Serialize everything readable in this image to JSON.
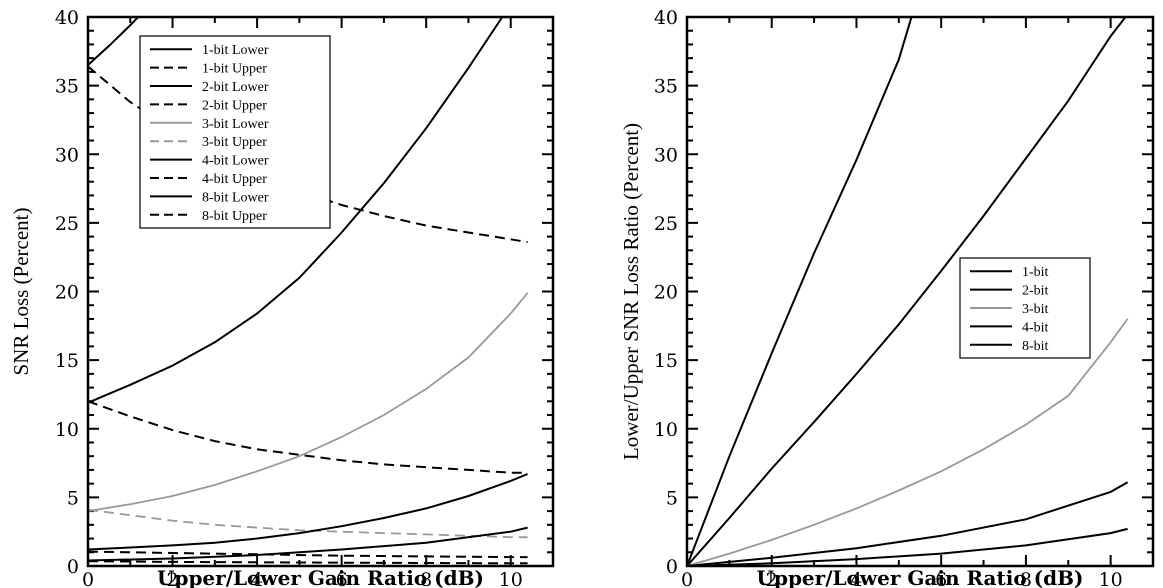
{
  "chart_data": [
    {
      "type": "line",
      "title": "",
      "xlabel": "Upper/Lower Gain Ratio (dB)",
      "ylabel": "SNR Loss (Percent)",
      "xlim": [
        0,
        11
      ],
      "ylim": [
        0,
        40
      ],
      "x_ticks": [
        0,
        2,
        4,
        6,
        8,
        10
      ],
      "y_ticks": [
        0,
        5,
        10,
        15,
        20,
        25,
        30,
        35,
        40
      ],
      "legend_position": "top-left",
      "series": [
        {
          "name": "1-bit Lower",
          "style": "solid",
          "color": "#000000",
          "x": [
            0,
            0.5,
            1,
            1.5,
            2
          ],
          "y": [
            36.5,
            37.9,
            39.4,
            41,
            42.6
          ]
        },
        {
          "name": "1-bit Upper",
          "style": "dashed",
          "color": "#000000",
          "x": [
            0,
            1,
            2,
            3,
            4,
            5,
            6,
            7,
            8,
            9,
            10,
            10.4
          ],
          "y": [
            36.4,
            33.8,
            31.8,
            30.1,
            28.6,
            27.3,
            26.3,
            25.5,
            24.8,
            24.3,
            23.8,
            23.6
          ]
        },
        {
          "name": "2-bit Lower",
          "style": "solid",
          "color": "#000000",
          "x": [
            0,
            1,
            2,
            3,
            4,
            5,
            6,
            7,
            8,
            9,
            9.8
          ],
          "y": [
            11.9,
            13.2,
            14.6,
            16.3,
            18.4,
            21.0,
            24.3,
            27.9,
            31.9,
            36.3,
            40.0
          ]
        },
        {
          "name": "2-bit Upper",
          "style": "dashed",
          "color": "#000000",
          "x": [
            0,
            1,
            2,
            3,
            4,
            5,
            6,
            7,
            8,
            9,
            10,
            10.4
          ],
          "y": [
            12.0,
            10.9,
            9.9,
            9.1,
            8.5,
            8.1,
            7.7,
            7.4,
            7.2,
            7.0,
            6.8,
            6.8
          ]
        },
        {
          "name": "3-bit Lower",
          "style": "solid",
          "color": "#999999",
          "x": [
            0,
            1,
            2,
            3,
            4,
            5,
            6,
            7,
            8,
            9,
            10,
            10.4
          ],
          "y": [
            4.0,
            4.5,
            5.1,
            5.9,
            6.9,
            8.0,
            9.4,
            11.0,
            12.9,
            15.2,
            18.4,
            19.9
          ]
        },
        {
          "name": "3-bit Upper",
          "style": "dashed",
          "color": "#999999",
          "x": [
            0,
            1,
            2,
            3,
            4,
            5,
            6,
            7,
            8,
            9,
            10,
            10.4
          ],
          "y": [
            4.1,
            3.7,
            3.3,
            3.0,
            2.8,
            2.6,
            2.5,
            2.4,
            2.3,
            2.2,
            2.1,
            2.1
          ]
        },
        {
          "name": "4-bit Lower",
          "style": "solid",
          "color": "#000000",
          "x": [
            0,
            1,
            2,
            3,
            4,
            5,
            6,
            7,
            8,
            9,
            10,
            10.4
          ],
          "y": [
            1.2,
            1.35,
            1.5,
            1.7,
            2.0,
            2.4,
            2.9,
            3.5,
            4.2,
            5.1,
            6.2,
            6.7
          ]
        },
        {
          "name": "4-bit Upper",
          "style": "dashed",
          "color": "#000000",
          "x": [
            0,
            2,
            4,
            6,
            8,
            10,
            10.4
          ],
          "y": [
            1.05,
            0.95,
            0.85,
            0.75,
            0.7,
            0.65,
            0.65
          ]
        },
        {
          "name": "8-bit Lower",
          "style": "solid",
          "color": "#000000",
          "x": [
            0,
            2,
            4,
            6,
            8,
            10,
            10.4
          ],
          "y": [
            0.4,
            0.55,
            0.8,
            1.2,
            1.7,
            2.5,
            2.8
          ]
        },
        {
          "name": "8-bit Upper",
          "style": "dashed",
          "color": "#000000",
          "x": [
            0,
            2,
            4,
            6,
            8,
            10,
            10.4
          ],
          "y": [
            0.35,
            0.3,
            0.27,
            0.24,
            0.22,
            0.2,
            0.2
          ]
        }
      ]
    },
    {
      "type": "line",
      "title": "",
      "xlabel": "Upper/Lower Gain Ratio (dB)",
      "ylabel": "Lower/Upper SNR Loss Ratio (Percent)",
      "xlim": [
        0,
        11
      ],
      "ylim": [
        0,
        40
      ],
      "x_ticks": [
        0,
        2,
        4,
        6,
        8,
        10
      ],
      "y_ticks": [
        0,
        5,
        10,
        15,
        20,
        25,
        30,
        35,
        40
      ],
      "legend_position": "center-right",
      "series": [
        {
          "name": "1-bit",
          "style": "solid",
          "color": "#000000",
          "x": [
            0,
            1,
            2,
            3,
            4,
            5,
            5.3
          ],
          "y": [
            0,
            8.0,
            15.5,
            22.8,
            29.6,
            36.9,
            40.0
          ]
        },
        {
          "name": "2-bit",
          "style": "solid",
          "color": "#000000",
          "x": [
            0,
            1,
            2,
            3,
            4,
            5,
            6,
            7,
            8,
            9,
            10,
            10.35
          ],
          "y": [
            0,
            3.5,
            7.1,
            10.5,
            14.0,
            17.6,
            21.5,
            25.5,
            29.7,
            33.9,
            38.6,
            40.0
          ]
        },
        {
          "name": "3-bit",
          "style": "solid",
          "color": "#999999",
          "x": [
            0,
            1,
            2,
            3,
            4,
            5,
            6,
            7,
            8,
            9,
            10,
            10.4
          ],
          "y": [
            0,
            0.9,
            1.9,
            3.0,
            4.2,
            5.5,
            6.9,
            8.5,
            10.3,
            12.4,
            16.3,
            18.0
          ]
        },
        {
          "name": "4-bit",
          "style": "solid",
          "color": "#000000",
          "x": [
            0,
            2,
            4,
            6,
            8,
            10,
            10.4
          ],
          "y": [
            0,
            0.6,
            1.3,
            2.2,
            3.4,
            5.4,
            6.1
          ]
        },
        {
          "name": "8-bit",
          "style": "solid",
          "color": "#000000",
          "x": [
            0,
            2,
            4,
            6,
            8,
            10,
            10.4
          ],
          "y": [
            0,
            0.2,
            0.5,
            0.9,
            1.5,
            2.4,
            2.7
          ]
        }
      ]
    }
  ]
}
